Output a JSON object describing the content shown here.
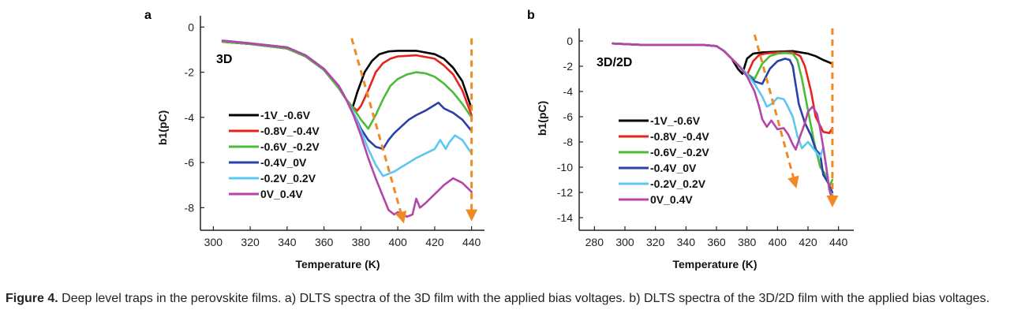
{
  "chart_data": [
    {
      "type": "line",
      "panel": "a",
      "inset_label": "3D",
      "xlabel": "Temperature (K)",
      "ylabel": "b1(pC)",
      "xlim": [
        293,
        447
      ],
      "ylim": [
        -9,
        0.5
      ],
      "xticks": [
        300,
        320,
        340,
        360,
        380,
        400,
        420,
        440
      ],
      "yticks": [
        0,
        -2,
        -4,
        -6,
        -8
      ],
      "legend_position": "left-center",
      "grid": false,
      "arrows": [
        {
          "from": [
            375,
            -0.5
          ],
          "to": [
            403,
            -8.6
          ]
        },
        {
          "from": [
            440,
            -0.5
          ],
          "to": [
            440,
            -8.5
          ]
        }
      ],
      "series": [
        {
          "name": "-1V_-0.6V",
          "color": "#000000",
          "x": [
            305,
            320,
            340,
            350,
            360,
            368,
            372,
            375,
            378,
            382,
            386,
            390,
            395,
            400,
            410,
            420,
            425,
            430,
            435,
            440
          ],
          "y": [
            -0.65,
            -0.75,
            -0.95,
            -1.3,
            -1.9,
            -2.7,
            -3.2,
            -3.7,
            -2.9,
            -2.0,
            -1.5,
            -1.2,
            -1.08,
            -1.05,
            -1.05,
            -1.2,
            -1.4,
            -1.8,
            -2.4,
            -3.6
          ]
        },
        {
          "name": "-0.8V_-0.4V",
          "color": "#e8231b",
          "x": [
            305,
            320,
            340,
            350,
            360,
            368,
            372,
            375,
            378,
            380,
            384,
            388,
            392,
            396,
            400,
            410,
            420,
            425,
            430,
            435,
            440
          ],
          "y": [
            -0.65,
            -0.75,
            -0.95,
            -1.3,
            -1.9,
            -2.7,
            -3.2,
            -3.5,
            -3.7,
            -3.5,
            -2.8,
            -2.0,
            -1.6,
            -1.4,
            -1.3,
            -1.25,
            -1.4,
            -1.7,
            -2.1,
            -2.8,
            -3.9
          ]
        },
        {
          "name": "-0.6V_-0.2V",
          "color": "#4cbb3a",
          "x": [
            305,
            320,
            340,
            350,
            360,
            368,
            372,
            376,
            380,
            384,
            388,
            392,
            396,
            400,
            405,
            410,
            415,
            420,
            425,
            430,
            435,
            440
          ],
          "y": [
            -0.65,
            -0.75,
            -0.95,
            -1.3,
            -1.9,
            -2.7,
            -3.2,
            -3.6,
            -4.1,
            -4.5,
            -3.9,
            -3.2,
            -2.6,
            -2.3,
            -2.1,
            -2.0,
            -2.05,
            -2.2,
            -2.5,
            -2.9,
            -3.4,
            -4.0
          ]
        },
        {
          "name": "-0.4V_0V",
          "color": "#2b3fa8",
          "x": [
            305,
            320,
            340,
            350,
            360,
            368,
            372,
            376,
            380,
            384,
            388,
            392,
            395,
            398,
            402,
            406,
            410,
            415,
            420,
            422,
            425,
            430,
            435,
            440
          ],
          "y": [
            -0.6,
            -0.72,
            -0.9,
            -1.25,
            -1.85,
            -2.6,
            -3.2,
            -3.8,
            -4.5,
            -5.0,
            -5.3,
            -5.4,
            -5.0,
            -4.7,
            -4.4,
            -4.1,
            -3.9,
            -3.7,
            -3.45,
            -3.35,
            -3.6,
            -3.8,
            -4.1,
            -4.6
          ]
        },
        {
          "name": "-0.2V_0.2V",
          "color": "#5bc8ef",
          "x": [
            305,
            320,
            340,
            350,
            360,
            368,
            372,
            376,
            380,
            384,
            388,
            392,
            395,
            398,
            402,
            406,
            410,
            415,
            420,
            423,
            426,
            428,
            431,
            435,
            440
          ],
          "y": [
            -0.6,
            -0.72,
            -0.9,
            -1.25,
            -1.85,
            -2.6,
            -3.2,
            -3.8,
            -4.6,
            -5.4,
            -6.1,
            -6.6,
            -6.5,
            -6.4,
            -6.2,
            -6.0,
            -5.8,
            -5.6,
            -5.4,
            -5.0,
            -5.4,
            -5.1,
            -4.8,
            -5.0,
            -5.6
          ]
        },
        {
          "name": "0V_0.4V",
          "color": "#b546a8",
          "x": [
            305,
            320,
            340,
            350,
            360,
            368,
            372,
            376,
            380,
            384,
            388,
            392,
            395,
            398,
            400,
            405,
            408,
            410,
            412,
            415,
            420,
            425,
            430,
            435,
            440
          ],
          "y": [
            -0.6,
            -0.72,
            -0.9,
            -1.25,
            -1.85,
            -2.6,
            -3.2,
            -3.9,
            -4.8,
            -5.8,
            -6.7,
            -7.5,
            -8.1,
            -8.3,
            -8.2,
            -8.4,
            -8.3,
            -7.6,
            -8.0,
            -7.8,
            -7.4,
            -7.0,
            -6.7,
            -6.9,
            -7.3
          ]
        }
      ]
    },
    {
      "type": "line",
      "panel": "b",
      "inset_label": "3D/2D",
      "xlabel": "Temperature (K)",
      "ylabel": "b1(pC)",
      "xlim": [
        270,
        450
      ],
      "ylim": [
        -15,
        1
      ],
      "xticks": [
        280,
        300,
        320,
        340,
        360,
        380,
        400,
        420,
        440
      ],
      "yticks": [
        0,
        -2,
        -4,
        -6,
        -8,
        -10,
        -12,
        -14
      ],
      "legend_position": "left-center",
      "grid": false,
      "arrows": [
        {
          "from": [
            385,
            0.5
          ],
          "to": [
            412,
            -11.5
          ]
        },
        {
          "from": [
            436,
            1.0
          ],
          "to": [
            436,
            -13.0
          ]
        }
      ],
      "series": [
        {
          "name": "-1V_-0.6V",
          "color": "#000000",
          "x": [
            292,
            310,
            330,
            350,
            360,
            365,
            370,
            374,
            377,
            380,
            384,
            390,
            400,
            410,
            420,
            425,
            430,
            436
          ],
          "y": [
            -0.2,
            -0.3,
            -0.3,
            -0.3,
            -0.4,
            -0.8,
            -1.4,
            -2.2,
            -2.6,
            -1.4,
            -1.0,
            -0.9,
            -0.85,
            -0.8,
            -1.0,
            -1.2,
            -1.5,
            -1.8
          ]
        },
        {
          "name": "-0.8V_-0.4V",
          "color": "#e8231b",
          "x": [
            292,
            310,
            330,
            350,
            360,
            365,
            370,
            375,
            380,
            384,
            388,
            392,
            400,
            410,
            415,
            418,
            422,
            425,
            430,
            434,
            436
          ],
          "y": [
            -0.2,
            -0.3,
            -0.3,
            -0.3,
            -0.4,
            -0.8,
            -1.4,
            -2.0,
            -2.7,
            -1.6,
            -1.1,
            -1.0,
            -0.9,
            -0.9,
            -1.2,
            -2.0,
            -4.0,
            -6.0,
            -7.2,
            -7.3,
            -6.9
          ]
        },
        {
          "name": "-0.6V_-0.2V",
          "color": "#4cbb3a",
          "x": [
            292,
            310,
            330,
            350,
            360,
            365,
            370,
            375,
            380,
            385,
            390,
            395,
            400,
            405,
            410,
            413,
            416,
            420,
            424,
            428,
            431,
            434,
            436
          ],
          "y": [
            -0.2,
            -0.3,
            -0.3,
            -0.3,
            -0.4,
            -0.8,
            -1.4,
            -2.0,
            -2.6,
            -3.0,
            -1.8,
            -1.2,
            -1.0,
            -0.95,
            -1.0,
            -1.5,
            -3.0,
            -5.5,
            -8.0,
            -10.0,
            -10.5,
            -11.5,
            -11.0
          ]
        },
        {
          "name": "-0.4V_0V",
          "color": "#2b3fa8",
          "x": [
            292,
            310,
            330,
            350,
            360,
            365,
            370,
            375,
            380,
            385,
            390,
            395,
            400,
            405,
            408,
            410,
            412,
            414,
            418,
            422,
            425,
            428,
            430,
            433,
            436
          ],
          "y": [
            -0.2,
            -0.3,
            -0.3,
            -0.3,
            -0.4,
            -0.8,
            -1.4,
            -2.0,
            -2.6,
            -3.2,
            -3.4,
            -2.2,
            -1.6,
            -1.4,
            -1.5,
            -2.0,
            -3.5,
            -5.0,
            -6.5,
            -7.5,
            -8.6,
            -9.0,
            -10.6,
            -11.2,
            -12.0
          ]
        },
        {
          "name": "-0.2V_0.2V",
          "color": "#5bc8ef",
          "x": [
            292,
            310,
            330,
            350,
            360,
            365,
            370,
            375,
            380,
            385,
            390,
            393,
            396,
            400,
            404,
            406,
            410,
            413,
            416,
            420,
            424,
            428,
            430,
            432,
            434,
            436
          ],
          "y": [
            -0.2,
            -0.3,
            -0.3,
            -0.3,
            -0.4,
            -0.8,
            -1.4,
            -2.0,
            -2.6,
            -3.4,
            -4.4,
            -5.2,
            -5.0,
            -4.5,
            -4.6,
            -5.0,
            -6.0,
            -7.5,
            -8.5,
            -8.0,
            -8.6,
            -9.2,
            -8.4,
            -10.0,
            -11.8,
            -12.3
          ]
        },
        {
          "name": "0V_0.4V",
          "color": "#b546a8",
          "x": [
            292,
            310,
            330,
            350,
            360,
            365,
            370,
            375,
            380,
            385,
            388,
            390,
            393,
            396,
            400,
            404,
            407,
            410,
            412,
            415,
            418,
            420,
            423,
            426,
            428,
            430,
            432,
            434,
            436
          ],
          "y": [
            -0.2,
            -0.3,
            -0.3,
            -0.3,
            -0.4,
            -0.8,
            -1.4,
            -2.0,
            -2.8,
            -4.0,
            -5.2,
            -6.2,
            -6.8,
            -6.3,
            -7.0,
            -6.9,
            -7.4,
            -8.2,
            -8.6,
            -7.5,
            -6.5,
            -5.6,
            -5.2,
            -5.8,
            -7.0,
            -8.4,
            -10.0,
            -11.8,
            -12.6
          ]
        }
      ]
    }
  ],
  "caption": {
    "label": "Figure 4.",
    "text": "Deep level traps in the perovskite films. a) DLTS spectra of the 3D film with the applied bias voltages. b) DLTS spectra of the 3D/2D film with the applied bias voltages."
  },
  "colors": {
    "arrow": "#f08a24",
    "axis": "#222222"
  }
}
